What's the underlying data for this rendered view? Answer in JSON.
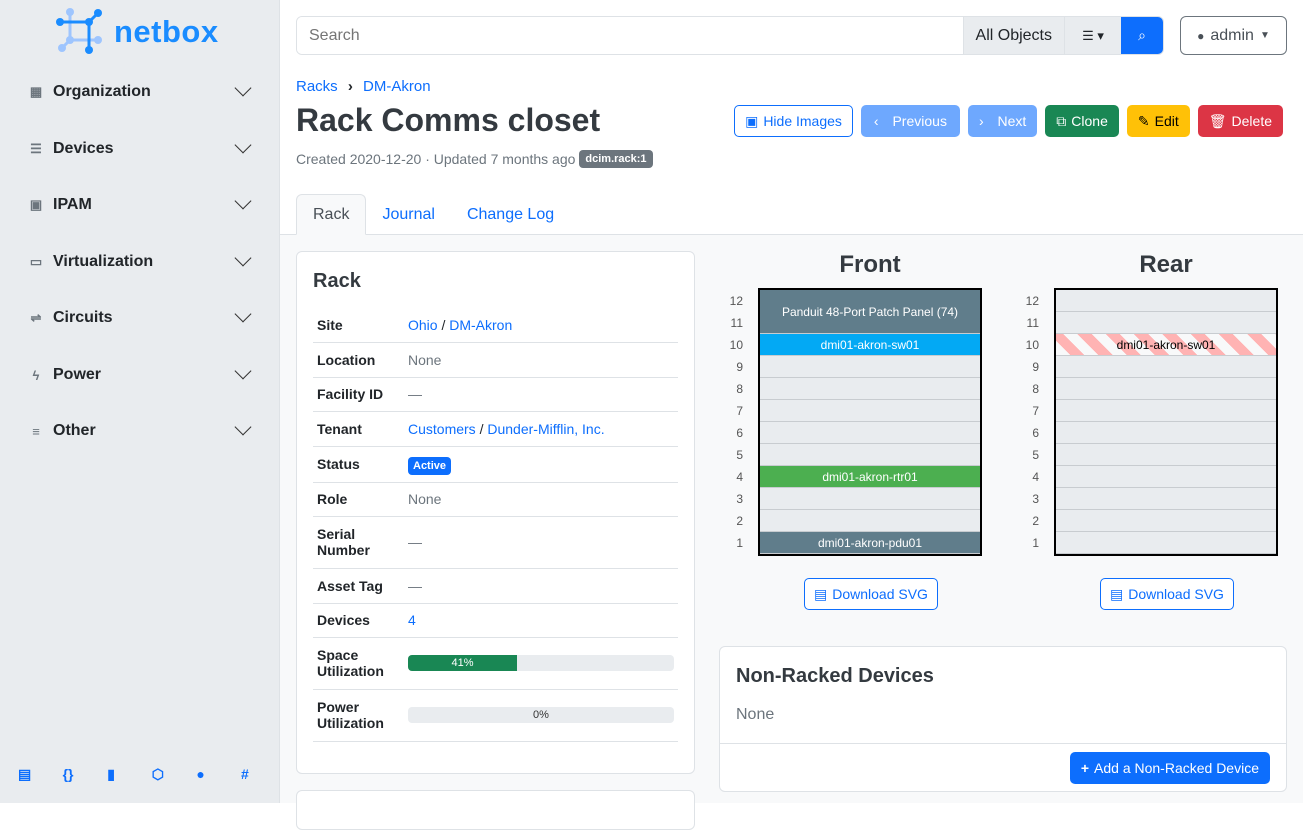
{
  "brand": {
    "name": "netbox",
    "color": "#1a8cff"
  },
  "sidebar": {
    "items": [
      {
        "label": "Organization",
        "icon": "building-icon"
      },
      {
        "label": "Devices",
        "icon": "server-icon"
      },
      {
        "label": "IPAM",
        "icon": "ip-icon"
      },
      {
        "label": "Virtualization",
        "icon": "monitor-icon"
      },
      {
        "label": "Circuits",
        "icon": "circuit-icon"
      },
      {
        "label": "Power",
        "icon": "bolt-icon"
      },
      {
        "label": "Other",
        "icon": "lines-icon"
      }
    ],
    "footer_icons": [
      "docs-icon",
      "api-icon",
      "book-icon",
      "graphql-icon",
      "github-icon",
      "slack-icon"
    ]
  },
  "search": {
    "placeholder": "Search",
    "scope": "All Objects"
  },
  "user": {
    "name": "admin"
  },
  "breadcrumb": [
    "Racks",
    "DM-Akron"
  ],
  "page": {
    "title": "Rack Comms closet",
    "meta": "Created 2020-12-20 · Updated 7 months ago",
    "tag": "dcim.rack:1"
  },
  "actions": {
    "hide_images": "Hide Images",
    "previous": "Previous",
    "next": "Next",
    "clone": "Clone",
    "edit": "Edit",
    "delete": "Delete"
  },
  "tabs": [
    "Rack",
    "Journal",
    "Change Log"
  ],
  "rack_card": {
    "title": "Rack",
    "rows": {
      "site": {
        "label": "Site",
        "v1": "Ohio",
        "sep": " / ",
        "v2": "DM-Akron"
      },
      "location": {
        "label": "Location",
        "value": "None"
      },
      "facility": {
        "label": "Facility ID",
        "value": "—"
      },
      "tenant": {
        "label": "Tenant",
        "v1": "Customers",
        "sep": " / ",
        "v2": "Dunder-Mifflin, Inc."
      },
      "status": {
        "label": "Status",
        "value": "Active"
      },
      "role": {
        "label": "Role",
        "value": "None"
      },
      "serial": {
        "label": "Serial Number",
        "value": "—"
      },
      "asset": {
        "label": "Asset Tag",
        "value": "—"
      },
      "devices": {
        "label": "Devices",
        "value": "4"
      },
      "space": {
        "label": "Space Utilization",
        "value": "41%",
        "percent": 41
      },
      "power": {
        "label": "Power Utilization",
        "value": "0%",
        "percent": 0
      }
    }
  },
  "elevation": {
    "front": {
      "title": "Front",
      "devices": [
        {
          "name": "Panduit 48-Port Patch Panel (74)",
          "position": 11,
          "height": 2,
          "color": "#607d8b"
        },
        {
          "name": "dmi01-akron-sw01",
          "position": 10,
          "height": 1,
          "color": "#03a9f4"
        },
        {
          "name": "dmi01-akron-rtr01",
          "position": 4,
          "height": 1,
          "color": "#4caf50"
        },
        {
          "name": "dmi01-akron-pdu01",
          "position": 1,
          "height": 1,
          "color": "#607d8b"
        }
      ]
    },
    "rear": {
      "title": "Rear",
      "devices": [
        {
          "name": "dmi01-akron-sw01",
          "position": 10,
          "height": 1,
          "style": "hatched"
        }
      ]
    },
    "units": [
      12,
      11,
      10,
      9,
      8,
      7,
      6,
      5,
      4,
      3,
      2,
      1
    ],
    "download": "Download SVG"
  },
  "non_racked": {
    "title": "Non-Racked Devices",
    "value": "None",
    "add": "Add a Non-Racked Device"
  }
}
